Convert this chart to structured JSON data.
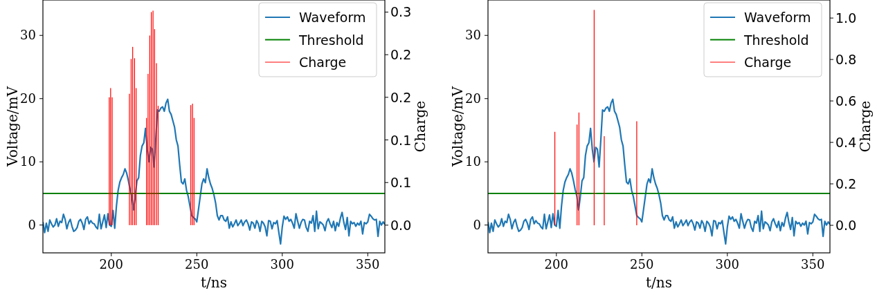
{
  "chart_data": [
    {
      "type": "line",
      "xlabel": "t/ns",
      "ylabel": "Voltage/mV",
      "y2label": "Charge",
      "xlim": [
        160,
        360
      ],
      "xticks": [
        200,
        250,
        300,
        350
      ],
      "ylim": [
        -4.4,
        35.6
      ],
      "yticks": [
        0,
        10,
        20,
        30
      ],
      "y2lim": [
        -0.039,
        0.317
      ],
      "y2ticks": [
        {
          "value": 0,
          "label": "0.0"
        },
        {
          "value": 0.06,
          "label": "0.1"
        },
        {
          "value": 0.12,
          "label": "0.1"
        },
        {
          "value": 0.18,
          "label": "0.2"
        },
        {
          "value": 0.24,
          "label": "0.2"
        },
        {
          "value": 0.3,
          "label": "0.3"
        }
      ],
      "legend": "top right",
      "series": [
        {
          "name": "Waveform",
          "color": "#1f77b4",
          "x": [
            160,
            161,
            162,
            163,
            164,
            165,
            166,
            167,
            168,
            169,
            170,
            171,
            172,
            173,
            174,
            175,
            176,
            177,
            178,
            179,
            180,
            181,
            182,
            183,
            184,
            185,
            186,
            187,
            188,
            189,
            190,
            191,
            192,
            193,
            194,
            195,
            196,
            197,
            198,
            199,
            200,
            201,
            202,
            203,
            204,
            205,
            206,
            207,
            208,
            209,
            210,
            211,
            212,
            213,
            214,
            215,
            216,
            217,
            218,
            219,
            220,
            221,
            222,
            223,
            224,
            225,
            226,
            227,
            228,
            229,
            230,
            231,
            232,
            233,
            234,
            235,
            236,
            237,
            238,
            239,
            240,
            241,
            242,
            243,
            244,
            245,
            246,
            247,
            248,
            249,
            250,
            251,
            252,
            253,
            254,
            255,
            256,
            257,
            258,
            259,
            260,
            261,
            262,
            263,
            264,
            265,
            266,
            267,
            268,
            269,
            270,
            271,
            272,
            273,
            274,
            275,
            276,
            277,
            278,
            279,
            280,
            281,
            282,
            283,
            284,
            285,
            286,
            287,
            288,
            289,
            290,
            291,
            292,
            293,
            294,
            295,
            296,
            297,
            298,
            299,
            300,
            301,
            302,
            303,
            304,
            305,
            306,
            307,
            308,
            309,
            310,
            311,
            312,
            313,
            314,
            315,
            316,
            317,
            318,
            319,
            320,
            321,
            322,
            323,
            324,
            325,
            326,
            327,
            328,
            329,
            330,
            331,
            332,
            333,
            334,
            335,
            336,
            337,
            338,
            339,
            340,
            341,
            342,
            343,
            344,
            345,
            346,
            347,
            348,
            349,
            350,
            351,
            352,
            353,
            354,
            355,
            356,
            357,
            358,
            359,
            360
          ],
          "values": [
            0.5,
            -1.2,
            0.3,
            -1.0,
            0.8,
            0.2,
            -0.3,
            0.0,
            1.0,
            -0.2,
            0.6,
            0.4,
            1.7,
            0.9,
            -0.6,
            0.4,
            0.9,
            -0.2,
            -1.0,
            -0.8,
            -0.4,
            0.6,
            0.9,
            0.3,
            -0.7,
            0.9,
            1.3,
            0.2,
            0.7,
            0.3,
            0.2,
            -0.3,
            -0.6,
            1.7,
            -0.6,
            0.5,
            1.6,
            -0.4,
            1.8,
            0.0,
            -0.2,
            2.3,
            -0.5,
            3.0,
            5.5,
            6.8,
            7.5,
            8.0,
            8.9,
            8.2,
            7.0,
            5.6,
            4.5,
            2.4,
            4.5,
            7.0,
            7.5,
            11.0,
            12.5,
            13.0,
            15.3,
            12.0,
            10.0,
            12.3,
            12.0,
            9.2,
            13.5,
            18.2,
            18.0,
            18.5,
            18.7,
            18.0,
            19.3,
            19.9,
            18.0,
            17.5,
            16.5,
            15.5,
            13.5,
            12.5,
            9.5,
            6.8,
            6.5,
            7.3,
            5.5,
            4.5,
            3.0,
            1.5,
            1.2,
            1.0,
            0.5,
            2.5,
            4.5,
            6.5,
            7.3,
            6.7,
            8.9,
            7.5,
            6.5,
            5.8,
            4.8,
            3.5,
            1.5,
            0.8,
            1.5,
            1.5,
            0.8,
            0.6,
            1.3,
            -0.5,
            0.5,
            -0.3,
            0.2,
            0.8,
            -0.1,
            0.3,
            0.8,
            -0.1,
            0.5,
            0.8,
            0.2,
            -0.8,
            0.5,
            0.3,
            -0.5,
            0.7,
            0.2,
            -1.0,
            0.6,
            0.3,
            -0.3,
            -1.7,
            0.7,
            0.6,
            -0.6,
            0.4,
            0.2,
            0.7,
            -1.2,
            -3.0,
            -0.3,
            1.4,
            0.9,
            1.3,
            0.6,
            0.9,
            0.3,
            -0.5,
            1.8,
            0.6,
            -0.5,
            0.4,
            0.9,
            0.8,
            -0.4,
            -1.0,
            0.6,
            0.3,
            1.5,
            -1.0,
            2.2,
            -0.6,
            0.5,
            0.3,
            0.0,
            -0.9,
            0.5,
            1.0,
            0.2,
            -0.4,
            0.6,
            -0.9,
            0.4,
            -0.2,
            1.1,
            2.0,
            0.4,
            -0.7,
            1.2,
            -1.7,
            0.6,
            0.2,
            0.4,
            -0.2,
            0.3,
            0.0,
            0.6,
            -1.4,
            0.4,
            0.2,
            0.5,
            1.7,
            1.4,
            1.0,
            0.8,
            0.9,
            -1.8,
            0.6,
            0.0,
            0.5,
            0.1
          ]
        },
        {
          "name": "Threshold",
          "color": "#008000",
          "x": [
            160,
            360
          ],
          "values": [
            5,
            5
          ]
        },
        {
          "name": "Charge",
          "type": "bar",
          "axis": "y2",
          "color": "#ff0000",
          "x": [
            198.8,
            199.6,
            200.5,
            210.6,
            211.6,
            212.5,
            213.6,
            214.5,
            220.6,
            221.5,
            222.5,
            223.4,
            224.4,
            225.3,
            226.4,
            227.4,
            246.5,
            247.5,
            248.4
          ],
          "values": [
            0.18,
            0.193,
            0.18,
            0.185,
            0.234,
            0.251,
            0.235,
            0.193,
            0.151,
            0.213,
            0.267,
            0.3,
            0.302,
            0.276,
            0.228,
            0.168,
            0.169,
            0.171,
            0.151
          ]
        }
      ]
    },
    {
      "type": "line",
      "xlabel": "t/ns",
      "ylabel": "Voltage/mV",
      "y2label": "Charge",
      "xlim": [
        160,
        360
      ],
      "xticks": [
        200,
        250,
        300,
        350
      ],
      "ylim": [
        -4.4,
        35.6
      ],
      "yticks": [
        0,
        10,
        20,
        30
      ],
      "y2lim": [
        -0.133,
        1.087
      ],
      "y2ticks": [
        {
          "value": 0,
          "label": "0.0"
        },
        {
          "value": 0.2,
          "label": "0.2"
        },
        {
          "value": 0.4,
          "label": "0.4"
        },
        {
          "value": 0.6,
          "label": "0.6"
        },
        {
          "value": 0.8,
          "label": "0.8"
        },
        {
          "value": 1.0,
          "label": "1.0"
        }
      ],
      "legend": "top right",
      "series": [
        {
          "name": "Waveform",
          "color": "#1f77b4",
          "x": [
            160,
            161,
            162,
            163,
            164,
            165,
            166,
            167,
            168,
            169,
            170,
            171,
            172,
            173,
            174,
            175,
            176,
            177,
            178,
            179,
            180,
            181,
            182,
            183,
            184,
            185,
            186,
            187,
            188,
            189,
            190,
            191,
            192,
            193,
            194,
            195,
            196,
            197,
            198,
            199,
            200,
            201,
            202,
            203,
            204,
            205,
            206,
            207,
            208,
            209,
            210,
            211,
            212,
            213,
            214,
            215,
            216,
            217,
            218,
            219,
            220,
            221,
            222,
            223,
            224,
            225,
            226,
            227,
            228,
            229,
            230,
            231,
            232,
            233,
            234,
            235,
            236,
            237,
            238,
            239,
            240,
            241,
            242,
            243,
            244,
            245,
            246,
            247,
            248,
            249,
            250,
            251,
            252,
            253,
            254,
            255,
            256,
            257,
            258,
            259,
            260,
            261,
            262,
            263,
            264,
            265,
            266,
            267,
            268,
            269,
            270,
            271,
            272,
            273,
            274,
            275,
            276,
            277,
            278,
            279,
            280,
            281,
            282,
            283,
            284,
            285,
            286,
            287,
            288,
            289,
            290,
            291,
            292,
            293,
            294,
            295,
            296,
            297,
            298,
            299,
            300,
            301,
            302,
            303,
            304,
            305,
            306,
            307,
            308,
            309,
            310,
            311,
            312,
            313,
            314,
            315,
            316,
            317,
            318,
            319,
            320,
            321,
            322,
            323,
            324,
            325,
            326,
            327,
            328,
            329,
            330,
            331,
            332,
            333,
            334,
            335,
            336,
            337,
            338,
            339,
            340,
            341,
            342,
            343,
            344,
            345,
            346,
            347,
            348,
            349,
            350,
            351,
            352,
            353,
            354,
            355,
            356,
            357,
            358,
            359,
            360
          ],
          "values": [
            0.5,
            -1.2,
            0.3,
            -1.0,
            0.8,
            0.2,
            -0.3,
            0.0,
            1.0,
            -0.2,
            0.6,
            0.4,
            1.7,
            0.9,
            -0.6,
            0.4,
            0.9,
            -0.2,
            -1.0,
            -0.8,
            -0.4,
            0.6,
            0.9,
            0.3,
            -0.7,
            0.9,
            1.3,
            0.2,
            0.7,
            0.3,
            0.2,
            -0.3,
            -0.6,
            1.7,
            -0.6,
            0.5,
            1.6,
            -0.4,
            1.8,
            0.0,
            -0.2,
            2.3,
            -0.5,
            3.0,
            5.5,
            6.8,
            7.5,
            8.0,
            8.9,
            8.2,
            7.0,
            5.6,
            4.5,
            2.4,
            4.5,
            7.0,
            7.5,
            11.0,
            12.5,
            13.0,
            15.3,
            12.0,
            10.0,
            12.3,
            12.0,
            9.2,
            13.5,
            18.2,
            18.0,
            18.5,
            18.7,
            18.0,
            19.3,
            19.9,
            18.0,
            17.5,
            16.5,
            15.5,
            13.5,
            12.5,
            9.5,
            6.8,
            6.5,
            7.3,
            5.5,
            4.5,
            3.0,
            1.5,
            1.2,
            1.0,
            0.5,
            2.5,
            4.5,
            6.5,
            7.3,
            6.7,
            8.9,
            7.5,
            6.5,
            5.8,
            4.8,
            3.5,
            1.5,
            0.8,
            1.5,
            1.5,
            0.8,
            0.6,
            1.3,
            -0.5,
            0.5,
            -0.3,
            0.2,
            0.8,
            -0.1,
            0.3,
            0.8,
            -0.1,
            0.5,
            0.8,
            0.2,
            -0.8,
            0.5,
            0.3,
            -0.5,
            0.7,
            0.2,
            -1.0,
            0.6,
            0.3,
            -0.3,
            -1.7,
            0.7,
            0.6,
            -0.6,
            0.4,
            0.2,
            0.7,
            -1.2,
            -3.0,
            -0.3,
            1.4,
            0.9,
            1.3,
            0.6,
            0.9,
            0.3,
            -0.5,
            1.8,
            0.6,
            -0.5,
            0.4,
            0.9,
            0.8,
            -0.4,
            -1.0,
            0.6,
            0.3,
            1.5,
            -1.0,
            2.2,
            -0.6,
            0.5,
            0.3,
            0.0,
            -0.9,
            0.5,
            1.0,
            0.2,
            -0.4,
            0.6,
            -0.9,
            0.4,
            -0.2,
            1.1,
            2.0,
            0.4,
            -0.7,
            1.2,
            -1.7,
            0.6,
            0.2,
            0.4,
            -0.2,
            0.3,
            0.0,
            0.6,
            -1.4,
            0.4,
            0.2,
            0.5,
            1.7,
            1.4,
            1.0,
            0.8,
            0.9,
            -1.8,
            0.6,
            0.0,
            0.5,
            0.1
          ]
        },
        {
          "name": "Threshold",
          "color": "#008000",
          "x": [
            160,
            360
          ],
          "values": [
            5,
            5
          ]
        },
        {
          "name": "Charge",
          "type": "bar",
          "axis": "y2",
          "color": "#ff0000",
          "x": [
            199.1,
            212.1,
            213.2,
            222.1,
            228.0,
            247.0
          ],
          "values": [
            0.451,
            0.486,
            0.544,
            1.039,
            0.43,
            0.502
          ]
        }
      ]
    }
  ]
}
